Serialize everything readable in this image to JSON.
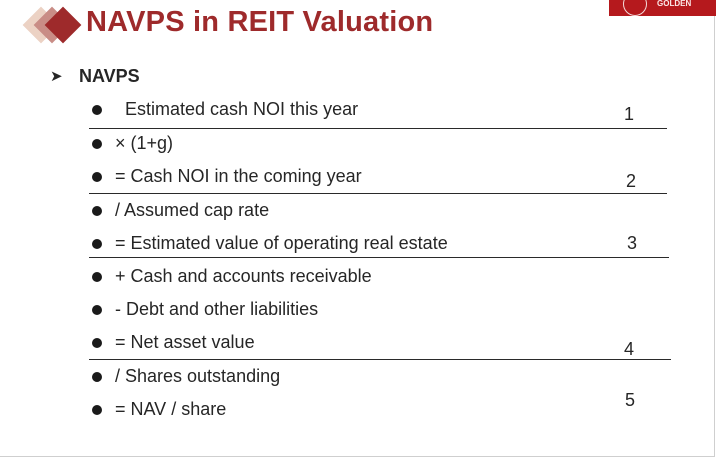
{
  "slide": {
    "title": "NAVPS in REIT Valuation",
    "logo_text": "GOLDEN",
    "section_label": "NAVPS",
    "section_arrow_icon": "arrow-right-icon",
    "accent_color": "#9e2a2b",
    "rows": [
      {
        "text": "Estimated cash NOI this year"
      },
      {
        "text": "× (1+g)"
      },
      {
        "text": "=  Cash NOI in the coming year"
      },
      {
        "text": "/  Assumed cap rate"
      },
      {
        "text": "=  Estimated value of operating real estate"
      },
      {
        "text": "+  Cash and accounts receivable"
      },
      {
        "text": "-   Debt and other liabilities"
      },
      {
        "text": "=  Net asset value"
      },
      {
        "text": "/  Shares outstanding"
      },
      {
        "text": "=  NAV / share"
      }
    ],
    "step_numbers": [
      "1",
      "2",
      "3",
      "4",
      "5"
    ]
  }
}
